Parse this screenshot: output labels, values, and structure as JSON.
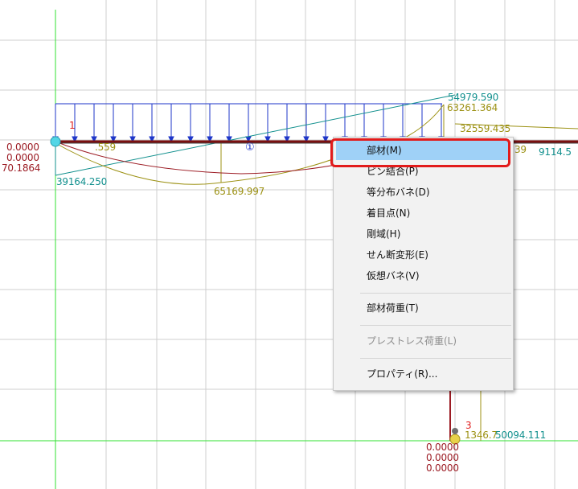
{
  "menu": {
    "items": [
      {
        "label": "部材(M)",
        "disabled": false,
        "highlighted": true
      },
      {
        "label": "ピン結合(P)",
        "disabled": false
      },
      {
        "label": "等分布バネ(D)",
        "disabled": false
      },
      {
        "label": "着目点(N)",
        "disabled": false
      },
      {
        "label": "剛域(H)",
        "disabled": false
      },
      {
        "label": "せん断変形(E)",
        "disabled": false
      },
      {
        "label": "仮想バネ(V)",
        "disabled": false
      },
      {
        "label": "部材荷重(T)",
        "disabled": false
      },
      {
        "label": "プレストレス荷重(L)",
        "disabled": true
      },
      {
        "label": "プロパティ(R)...",
        "disabled": false
      }
    ]
  },
  "diagram": {
    "node_1": "1",
    "node_3": "3",
    "member_1": "①",
    "values": {
      "v_54979": "54979.590",
      "v_63261": "63261.364",
      "v_32559": "32559.435",
      "v_9114": "9114.5",
      "v_39": "39",
      "v_1559": ".559",
      "v_00000_a": "0.0000",
      "v_00000_b": "0.0000",
      "v_701864": "70.1864",
      "v_39164": "39164.250",
      "v_65169": "65169.997",
      "v_50094": "50094.111",
      "v_1346": "1346.7",
      "v_00000_c": "0.0000",
      "v_00000_d": "0.0000",
      "v_00000_e": "0.0000"
    }
  },
  "colors": {
    "grid": "#cfcfcf",
    "axis": "#32e032",
    "load": "#1e36c8",
    "beam": "#7a1010",
    "shear": "#12908e",
    "moment": "#9c9113",
    "deflection": "#9c1c24",
    "menu_highlight": "#9fd1f7",
    "focus_ring": "#e21b1b"
  }
}
